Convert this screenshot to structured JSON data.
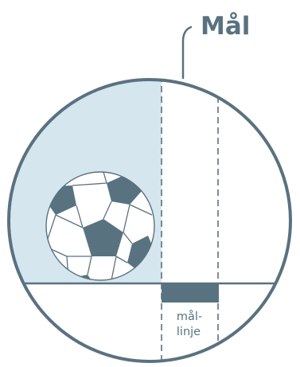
{
  "title": "Mål",
  "goal_line_label": {
    "line1": "mål-",
    "line2": "linje"
  },
  "colors": {
    "outline": "#5a7180",
    "fill_light": "#d5e6ee",
    "ball_dark": "#58737f",
    "goal_bar": "#58737f",
    "text": "#58737f"
  },
  "icons": [
    "soccer-ball-icon",
    "magnifier-circle"
  ]
}
